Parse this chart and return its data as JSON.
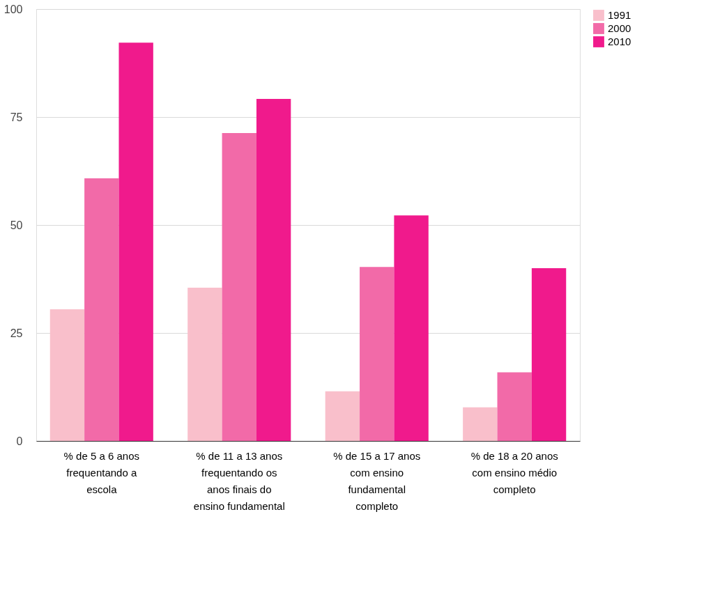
{
  "chart_data": {
    "type": "bar",
    "categories": [
      "% de 5 a 6 anos frequentando a escola",
      "% de 11 a 13 anos frequentando os anos finais do ensino fundamental",
      "% de 15 a 17 anos com ensino fundamental completo",
      "% de 18 a 20 anos com ensino médio completo"
    ],
    "series": [
      {
        "name": "1991",
        "color": "#f9bfcb",
        "values": [
          30.5,
          35.5,
          11.5,
          7.8
        ]
      },
      {
        "name": "2000",
        "color": "#f26aa8",
        "values": [
          60.8,
          71.3,
          40.3,
          15.9
        ]
      },
      {
        "name": "2010",
        "color": "#f01a8c",
        "values": [
          92.2,
          79.2,
          52.2,
          40.0
        ]
      }
    ],
    "ylim": [
      0,
      100
    ],
    "yticks": [
      0,
      25,
      50,
      75,
      100
    ],
    "grid": "y",
    "legend": "right"
  }
}
